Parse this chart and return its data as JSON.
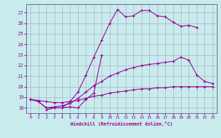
{
  "xlabel": "Windchill (Refroidissement éolien,°C)",
  "background_color": "#c8ecec",
  "line_color": "#990099",
  "grid_color": "#aaaacc",
  "spine_color": "#666699",
  "xlim": [
    -0.5,
    23.5
  ],
  "ylim": [
    17.5,
    27.8
  ],
  "xticks": [
    0,
    1,
    2,
    3,
    4,
    5,
    6,
    7,
    8,
    9,
    10,
    11,
    12,
    13,
    14,
    15,
    16,
    17,
    18,
    19,
    20,
    21,
    22,
    23
  ],
  "yticks": [
    18,
    19,
    20,
    21,
    22,
    23,
    24,
    25,
    26,
    27
  ],
  "line1_x": [
    0,
    1,
    2,
    3,
    4,
    5,
    6,
    7,
    8,
    9,
    10,
    11,
    12,
    13,
    14,
    15,
    16,
    17,
    18,
    19,
    20,
    21
  ],
  "line1_y": [
    18.8,
    18.6,
    18.0,
    18.0,
    18.0,
    18.6,
    19.5,
    21.1,
    22.8,
    24.4,
    26.0,
    27.3,
    26.6,
    26.7,
    27.2,
    27.2,
    26.7,
    26.6,
    26.1,
    25.7,
    25.8,
    25.6
  ],
  "line2_x": [
    0,
    1,
    2,
    3,
    4,
    5,
    6,
    7,
    8,
    9,
    10,
    11,
    12,
    13,
    14,
    15,
    16,
    17,
    18,
    19,
    20,
    21,
    22,
    23
  ],
  "line2_y": [
    18.8,
    18.6,
    18.0,
    18.1,
    18.2,
    18.4,
    18.9,
    19.5,
    20.1,
    20.5,
    21.0,
    21.3,
    21.6,
    21.8,
    22.0,
    22.1,
    22.2,
    22.3,
    22.4,
    22.8,
    22.5,
    21.1,
    20.5,
    20.3
  ],
  "line3_x": [
    0,
    1,
    2,
    3,
    4,
    5,
    6,
    7,
    8,
    9,
    10,
    11,
    12,
    13,
    14,
    15,
    16,
    17,
    18,
    19,
    20,
    21,
    22,
    23
  ],
  "line3_y": [
    18.8,
    18.7,
    18.6,
    18.5,
    18.5,
    18.6,
    18.7,
    18.9,
    19.1,
    19.2,
    19.4,
    19.5,
    19.6,
    19.7,
    19.8,
    19.8,
    19.9,
    19.9,
    20.0,
    20.0,
    20.0,
    20.0,
    20.0,
    20.0
  ],
  "line4_x": [
    2,
    3,
    4,
    5,
    6,
    7,
    8,
    9
  ],
  "line4_y": [
    17.8,
    18.0,
    18.0,
    18.1,
    18.0,
    18.8,
    19.4,
    23.0
  ]
}
